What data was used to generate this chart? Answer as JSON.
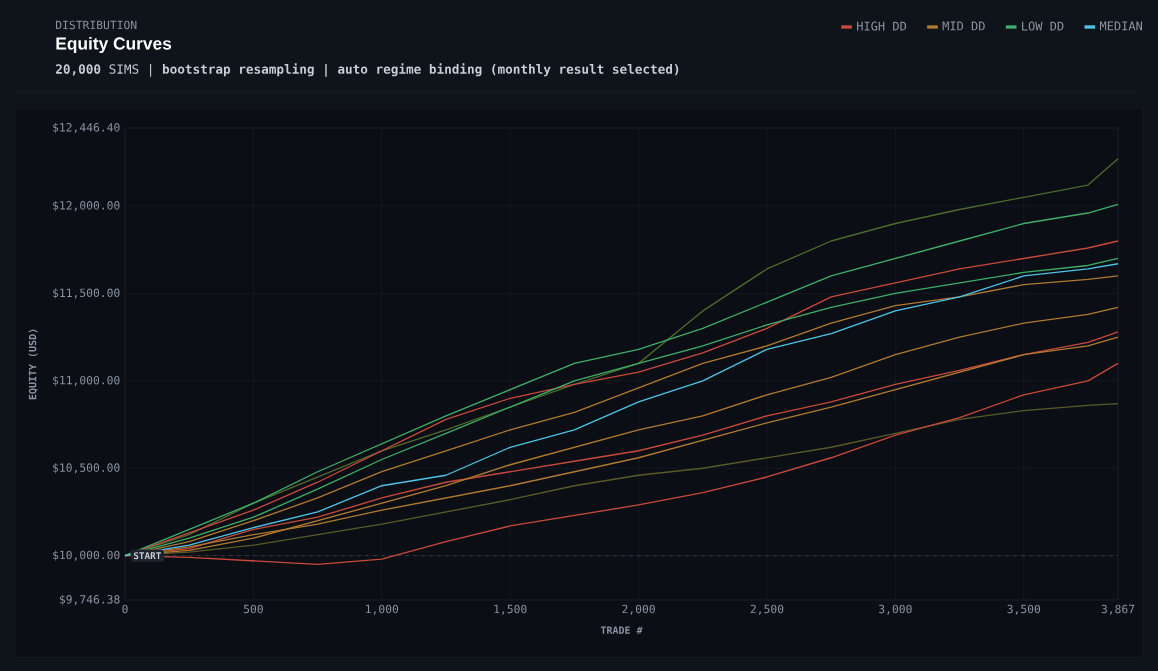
{
  "chart_data": {
    "type": "line",
    "title": "Equity Curves",
    "subtitle": "**20,000** SIMS | **bootstrap resampling | auto regime binding (monthly result selected)**",
    "xlabel": "TRADE #",
    "ylabel": "EQUITY (USD)",
    "annotations": [
      "DISTRIBUTION",
      {
        "text": "START",
        "x": 0,
        "y": 10000
      }
    ],
    "x": [
      0,
      250,
      500,
      750,
      1000,
      1250,
      1500,
      1750,
      2000,
      2250,
      2500,
      2750,
      3000,
      3250,
      3500,
      3750,
      3867
    ],
    "series": [
      {
        "color": "#4d6a2e",
        "values": [
          10000,
          10120,
          10300,
          10450,
          10600,
          10720,
          10850,
          10980,
          11100,
          11400,
          11640,
          11800,
          11900,
          11980,
          12050,
          12120,
          12270
        ]
      },
      {
        "color": "#5a5a28",
        "values": [
          10000,
          10020,
          10060,
          10120,
          10180,
          10250,
          10320,
          10400,
          10460,
          10500,
          10560,
          10620,
          10700,
          10780,
          10830,
          10860,
          10870
        ]
      },
      {
        "name": "HIGH DD",
        "color": "#c94a3c",
        "values": [
          10000,
          10130,
          10260,
          10420,
          10600,
          10780,
          10900,
          10980,
          11050,
          11160,
          11300,
          11480,
          11560,
          11640,
          11700,
          11760,
          11800
        ]
      },
      {
        "color": "#c94a3c",
        "values": [
          10000,
          10040,
          10150,
          10220,
          10330,
          10420,
          10480,
          10540,
          10600,
          10690,
          10800,
          10880,
          10980,
          11060,
          11150,
          11220,
          11280
        ]
      },
      {
        "color": "#c94a3c",
        "values": [
          10000,
          9990,
          9970,
          9950,
          9980,
          10080,
          10170,
          10230,
          10290,
          10360,
          10450,
          10560,
          10690,
          10790,
          10920,
          11000,
          11100
        ]
      },
      {
        "name": "MID DD",
        "color": "#b07a30",
        "values": [
          10000,
          10080,
          10200,
          10330,
          10480,
          10600,
          10720,
          10820,
          10960,
          11100,
          11200,
          11330,
          11430,
          11480,
          11550,
          11580,
          11600
        ]
      },
      {
        "color": "#b07a30",
        "values": [
          10000,
          10030,
          10100,
          10200,
          10300,
          10400,
          10520,
          10620,
          10720,
          10800,
          10920,
          11020,
          11150,
          11250,
          11330,
          11380,
          11420
        ]
      },
      {
        "color": "#b07a30",
        "values": [
          10000,
          10050,
          10120,
          10180,
          10260,
          10330,
          10400,
          10480,
          10560,
          10660,
          10760,
          10850,
          10950,
          11050,
          11150,
          11200,
          11250
        ]
      },
      {
        "name": "LOW DD",
        "color": "#3fae6a",
        "values": [
          10000,
          10150,
          10300,
          10480,
          10640,
          10800,
          10950,
          11100,
          11180,
          11300,
          11450,
          11600,
          11700,
          11800,
          11900,
          11960,
          12010
        ]
      },
      {
        "color": "#3fae6a",
        "values": [
          10000,
          10100,
          10220,
          10380,
          10550,
          10700,
          10850,
          11000,
          11100,
          11200,
          11320,
          11420,
          11500,
          11560,
          11620,
          11660,
          11700
        ]
      },
      {
        "name": "MEDIAN",
        "color": "#4ec3e6",
        "values": [
          10000,
          10060,
          10160,
          10250,
          10400,
          10460,
          10620,
          10720,
          10880,
          11000,
          11180,
          11270,
          11400,
          11480,
          11600,
          11640,
          11670
        ]
      }
    ],
    "xlim": [
      0,
      3867
    ],
    "ylim": [
      9746.38,
      12446.4
    ],
    "xticks": [
      0,
      500,
      {
        "value": 1000,
        "label": "1,000"
      },
      {
        "value": 1500,
        "label": "1,500"
      },
      {
        "value": 2000,
        "label": "2,000"
      },
      {
        "value": 2500,
        "label": "2,500"
      },
      {
        "value": 3000,
        "label": "3,000"
      },
      {
        "value": 3500,
        "label": "3,500"
      },
      {
        "value": 3867,
        "label": "3,867"
      }
    ],
    "yticks": [
      {
        "value": 9746.38,
        "label": "$9,746.38"
      },
      {
        "value": 10000,
        "label": "$10,000.00"
      },
      {
        "value": 10500,
        "label": "$10,500.00"
      },
      {
        "value": 11000,
        "label": "$11,000.00"
      },
      {
        "value": 11500,
        "label": "$11,500.00"
      },
      {
        "value": 12000,
        "label": "$12,000.00"
      },
      {
        "value": 12446.4,
        "label": "$12,446.40"
      }
    ],
    "ref_lines": [
      {
        "axis": "y",
        "value": 10000,
        "color": "#4b5563",
        "line_style": "dashed"
      }
    ],
    "grid": true,
    "legend": "top right",
    "marker": "none",
    "line_style": "solid"
  }
}
